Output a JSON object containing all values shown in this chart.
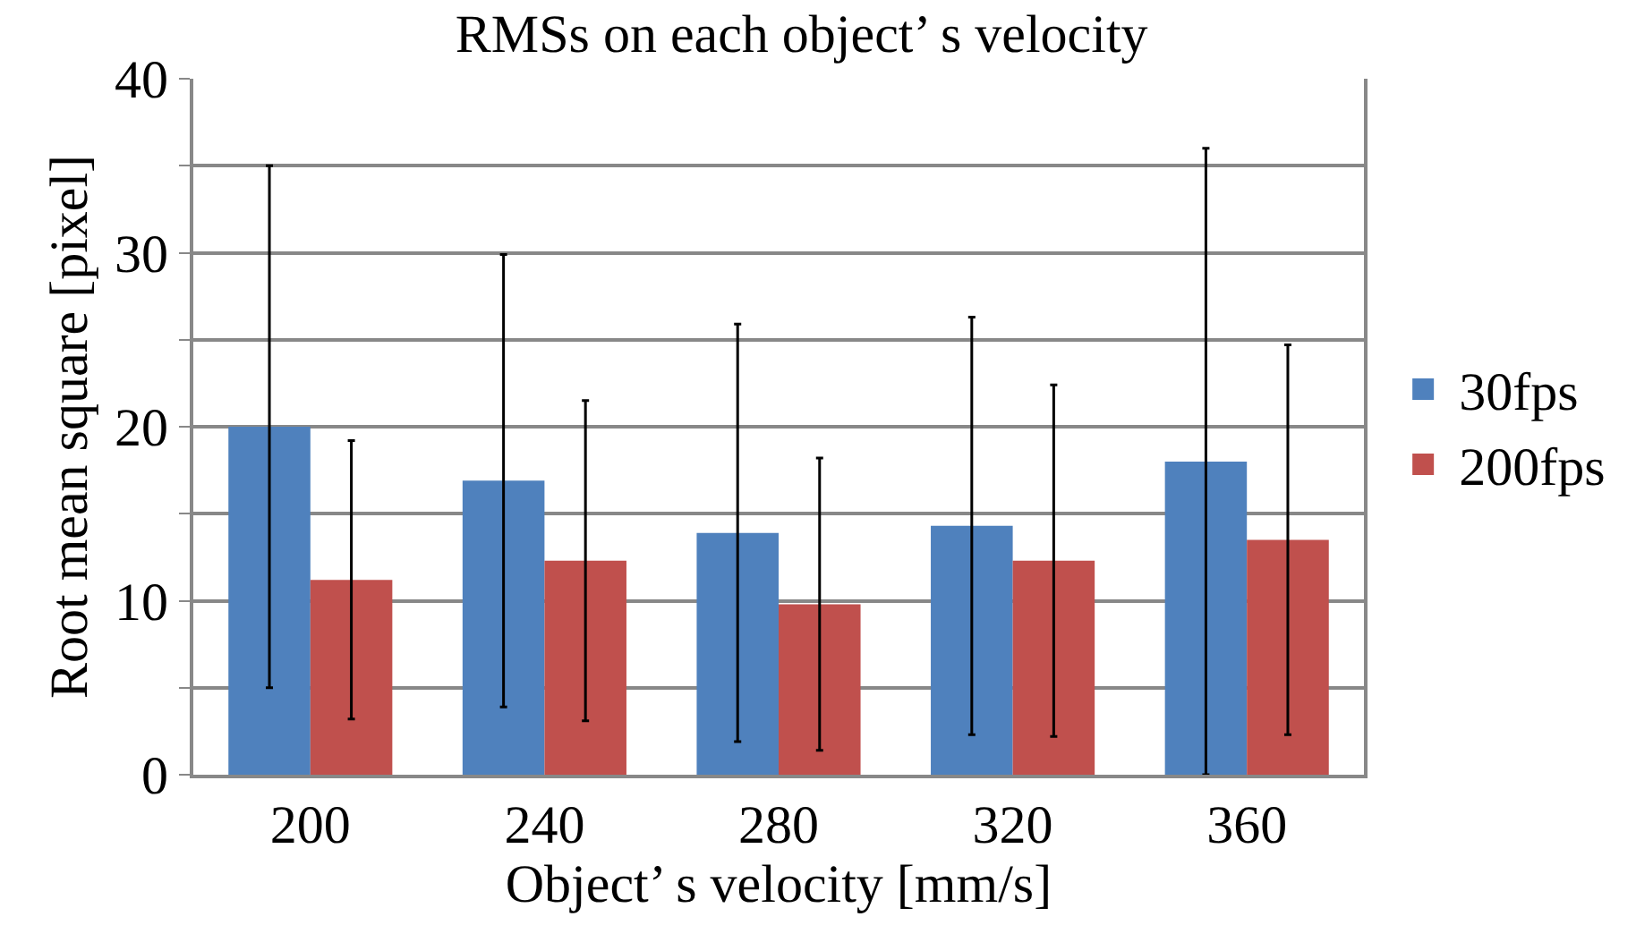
{
  "chart_data": {
    "type": "bar",
    "title": "RMSs on each object’ s velocity",
    "xlabel": "Object’ s velocity [mm/s]",
    "ylabel": "Root mean square [pixel]",
    "categories": [
      "200",
      "240",
      "280",
      "320",
      "360"
    ],
    "series": [
      {
        "name": "30fps",
        "color": "#4f81bd",
        "values": [
          20,
          16.9,
          13.9,
          14.3,
          18
        ],
        "errors": [
          15,
          13,
          12,
          12,
          18
        ]
      },
      {
        "name": "200fps",
        "color": "#c0504d",
        "values": [
          11.2,
          12.3,
          9.8,
          12.3,
          13.5
        ],
        "errors": [
          8,
          9.2,
          8.4,
          10.1,
          11.2
        ]
      }
    ],
    "ylim": [
      0,
      40
    ],
    "yticks": [
      0,
      {
        "value": 5,
        "label": null
      },
      10,
      {
        "value": 15,
        "label": null
      },
      20,
      {
        "value": 25,
        "label": null
      },
      30,
      {
        "value": 35,
        "label": null
      },
      40
    ],
    "grid": "y",
    "legend": "right"
  }
}
